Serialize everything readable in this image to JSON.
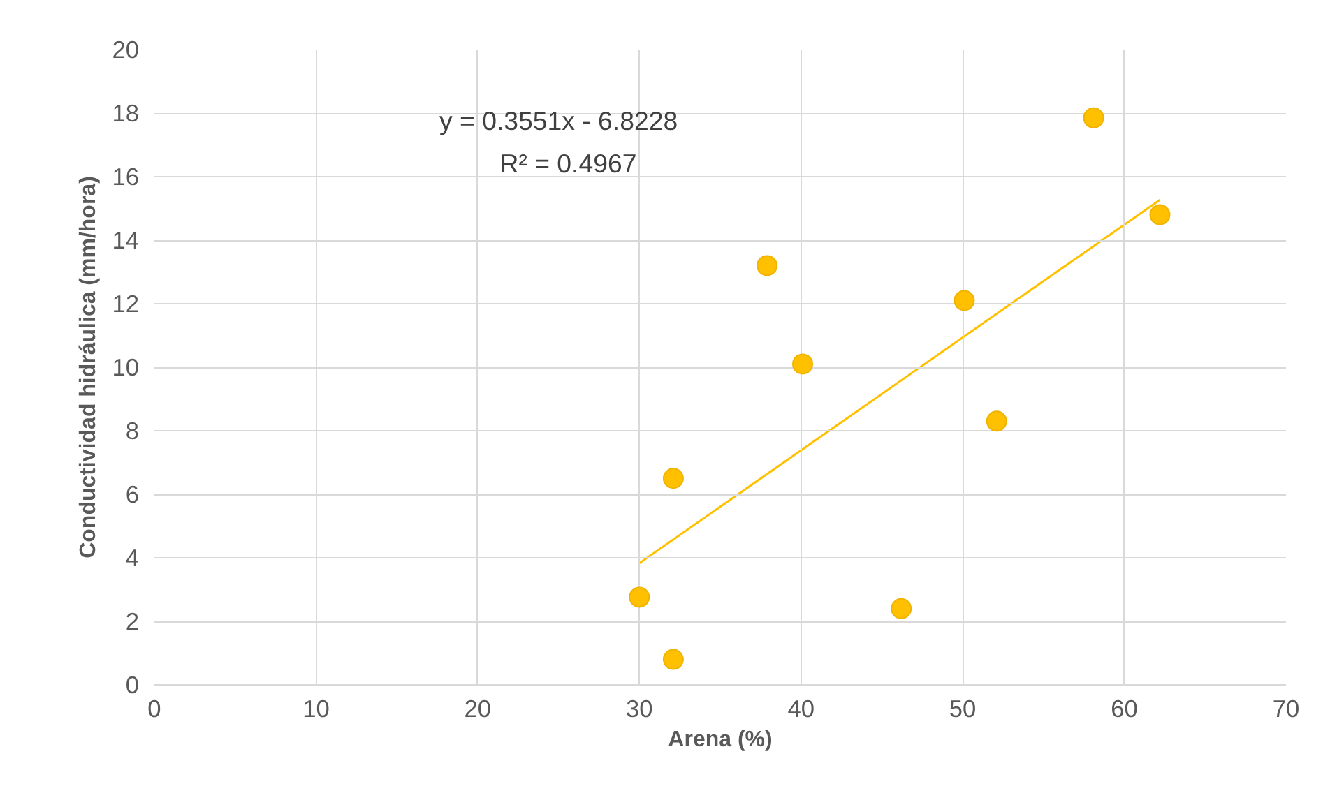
{
  "chart_data": {
    "type": "scatter",
    "xlabel": "Arena (%)",
    "ylabel": "Conductividad hidráulica (mm/hora)",
    "annotations": [
      "y = 0.3551x - 6.8228",
      "R² = 0.4967"
    ],
    "series": [
      {
        "marker": "circle",
        "color": "#ffc000",
        "x": [
          30.0,
          32.1,
          32.1,
          37.9,
          40.1,
          46.2,
          50.1,
          52.1,
          58.1,
          62.2
        ],
        "values": [
          2.76,
          0.8,
          6.5,
          13.2,
          10.1,
          2.4,
          12.1,
          8.3,
          17.85,
          14.8
        ]
      },
      {
        "type": "line",
        "color": "#ffc000",
        "x": [
          30.0,
          62.2
        ],
        "values": [
          3.83,
          15.27
        ]
      }
    ],
    "xlim": [
      0,
      70
    ],
    "ylim": [
      0,
      20
    ],
    "xticks": [
      0,
      10,
      20,
      30,
      40,
      50,
      60,
      70
    ],
    "yticks": [
      0,
      2,
      4,
      6,
      8,
      10,
      12,
      14,
      16,
      18,
      20
    ],
    "grid": true
  }
}
